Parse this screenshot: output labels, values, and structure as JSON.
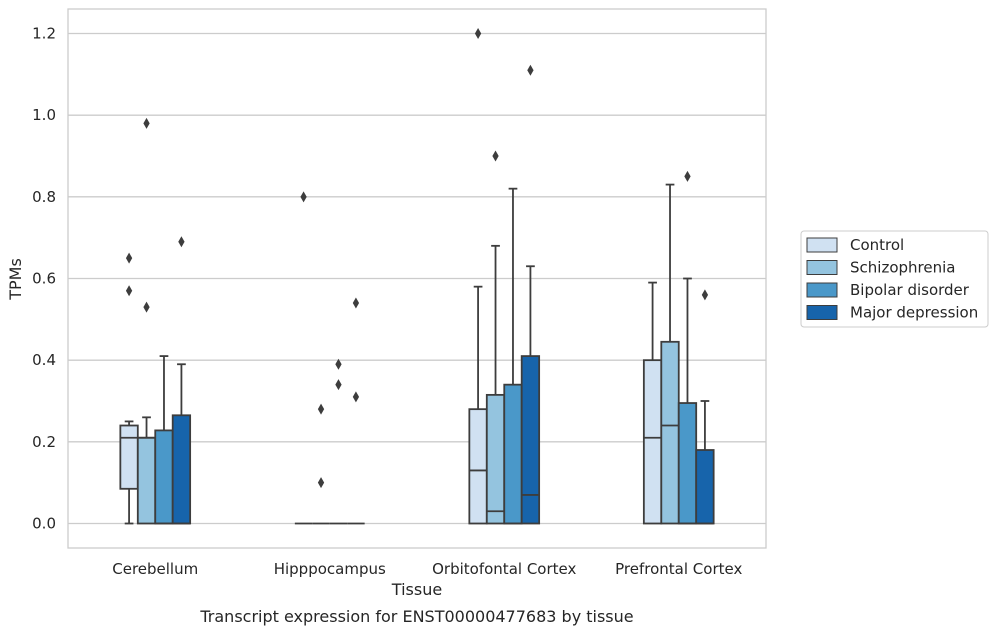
{
  "chart_data": {
    "type": "box",
    "xlabel": "Tissue",
    "ylabel": "TPMs",
    "caption": "Transcript expression for ENST00000477683 by tissue",
    "ylim": [
      -0.06,
      1.26
    ],
    "yticks": [
      "0.0",
      "0.2",
      "0.4",
      "0.6",
      "0.8",
      "1.0",
      "1.2"
    ],
    "grid": "horizontal",
    "legend_position": "right",
    "categories": [
      "Cerebellum",
      "Hipppocampus",
      "Orbitofontal Cortex",
      "Prefrontal Cortex"
    ],
    "series": [
      {
        "name": "Control",
        "color": "#d0e1f2",
        "boxes": [
          {
            "whislo": 0.0,
            "q1": 0.085,
            "med": 0.21,
            "q3": 0.24,
            "whishi": 0.25,
            "fliers": [
              0.57,
              0.65
            ]
          },
          {
            "whislo": 0.0,
            "q1": 0.0,
            "med": 0.0,
            "q3": 0.0,
            "whishi": 0.0,
            "fliers": [
              0.8
            ]
          },
          {
            "whislo": 0.0,
            "q1": 0.0,
            "med": 0.13,
            "q3": 0.28,
            "whishi": 0.58,
            "fliers": [
              1.2
            ]
          },
          {
            "whislo": 0.0,
            "q1": 0.0,
            "med": 0.21,
            "q3": 0.4,
            "whishi": 0.59,
            "fliers": []
          }
        ]
      },
      {
        "name": "Schizophrenia",
        "color": "#94c4df",
        "boxes": [
          {
            "whislo": 0.0,
            "q1": 0.0,
            "med": 0.21,
            "q3": 0.21,
            "whishi": 0.26,
            "fliers": [
              0.53,
              0.98
            ]
          },
          {
            "whislo": 0.0,
            "q1": 0.0,
            "med": 0.0,
            "q3": 0.0,
            "whishi": 0.0,
            "fliers": [
              0.1,
              0.28
            ]
          },
          {
            "whislo": 0.0,
            "q1": 0.0,
            "med": 0.03,
            "q3": 0.315,
            "whishi": 0.68,
            "fliers": [
              0.9
            ]
          },
          {
            "whislo": 0.0,
            "q1": 0.0,
            "med": 0.24,
            "q3": 0.445,
            "whishi": 0.83,
            "fliers": []
          }
        ]
      },
      {
        "name": "Bipolar disorder",
        "color": "#4a98c9",
        "boxes": [
          {
            "whislo": 0.0,
            "q1": 0.0,
            "med": 0.0,
            "q3": 0.228,
            "whishi": 0.41,
            "fliers": []
          },
          {
            "whislo": 0.0,
            "q1": 0.0,
            "med": 0.0,
            "q3": 0.0,
            "whishi": 0.0,
            "fliers": [
              0.34,
              0.39
            ]
          },
          {
            "whislo": 0.0,
            "q1": 0.0,
            "med": 0.0,
            "q3": 0.34,
            "whishi": 0.82,
            "fliers": []
          },
          {
            "whislo": 0.0,
            "q1": 0.0,
            "med": 0.0,
            "q3": 0.295,
            "whishi": 0.6,
            "fliers": [
              0.85
            ]
          }
        ]
      },
      {
        "name": "Major depression",
        "color": "#1764ab",
        "boxes": [
          {
            "whislo": 0.0,
            "q1": 0.0,
            "med": 0.0,
            "q3": 0.265,
            "whishi": 0.39,
            "fliers": [
              0.69
            ]
          },
          {
            "whislo": 0.0,
            "q1": 0.0,
            "med": 0.0,
            "q3": 0.0,
            "whishi": 0.0,
            "fliers": [
              0.31,
              0.54
            ]
          },
          {
            "whislo": 0.0,
            "q1": 0.0,
            "med": 0.07,
            "q3": 0.41,
            "whishi": 0.63,
            "fliers": [
              1.11
            ]
          },
          {
            "whislo": 0.0,
            "q1": 0.0,
            "med": 0.0,
            "q3": 0.18,
            "whishi": 0.3,
            "fliers": [
              0.56
            ]
          }
        ]
      }
    ]
  }
}
